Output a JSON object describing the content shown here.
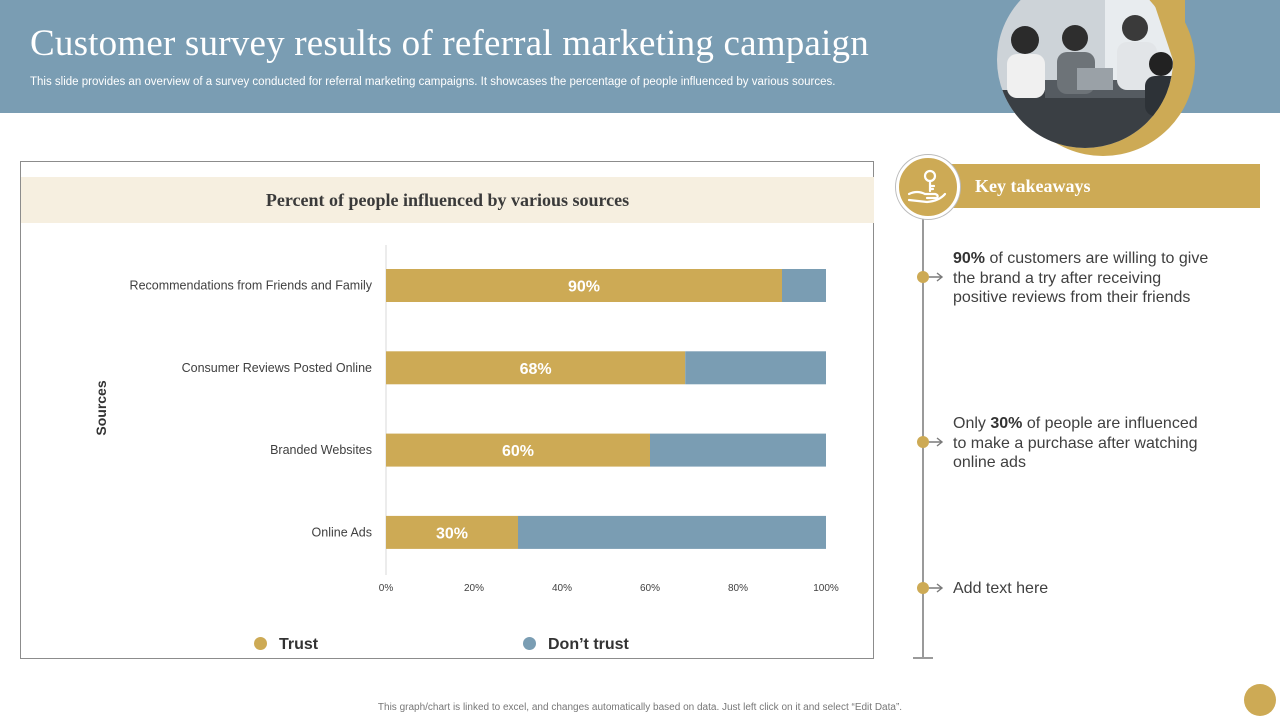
{
  "header": {
    "title": "Customer survey results of referral marketing campaign",
    "subtitle": "This slide provides an overview of a survey conducted for referral marketing campaigns. It showcases the percentage of people influenced by various sources."
  },
  "colors": {
    "trust": "#cdaa55",
    "dont_trust": "#7a9db3",
    "header": "#7a9db3",
    "band": "#f6efe0"
  },
  "chart_data": {
    "type": "bar",
    "orientation": "horizontal",
    "stacked": true,
    "title": "Percent of people influenced by various sources",
    "ylabel": "Sources",
    "xlabel": "",
    "categories": [
      "Recommendations from Friends and Family",
      "Consumer Reviews Posted Online",
      "Branded Websites",
      "Online Ads"
    ],
    "series": [
      {
        "name": "Trust",
        "values": [
          90,
          68,
          60,
          30
        ]
      },
      {
        "name": "Don’t trust",
        "values": [
          10,
          32,
          40,
          70
        ]
      }
    ],
    "data_labels": [
      "90%",
      "68%",
      "60%",
      "30%"
    ],
    "xticks": [
      "0%",
      "20%",
      "40%",
      "60%",
      "80%",
      "100%"
    ],
    "xlim": [
      0,
      100
    ],
    "legend_position": "bottom",
    "grid": false
  },
  "legend": {
    "trust": "Trust",
    "dont_trust": "Don’t trust"
  },
  "takeaways": {
    "title": "Key takeaways",
    "icon": "hand-holding-key-icon",
    "items": [
      {
        "highlight": "90%",
        "text": " of customers are willing to give the brand a try after receiving positive reviews from their friends"
      },
      {
        "prefix": "Only ",
        "highlight": "30%",
        "text": " of people are influenced to make a purchase after watching online ads"
      },
      {
        "text": "Add text here"
      }
    ]
  },
  "footer": {
    "note": "This graph/chart is linked to excel, and changes automatically based on data. Just left click on it and select “Edit Data”."
  }
}
